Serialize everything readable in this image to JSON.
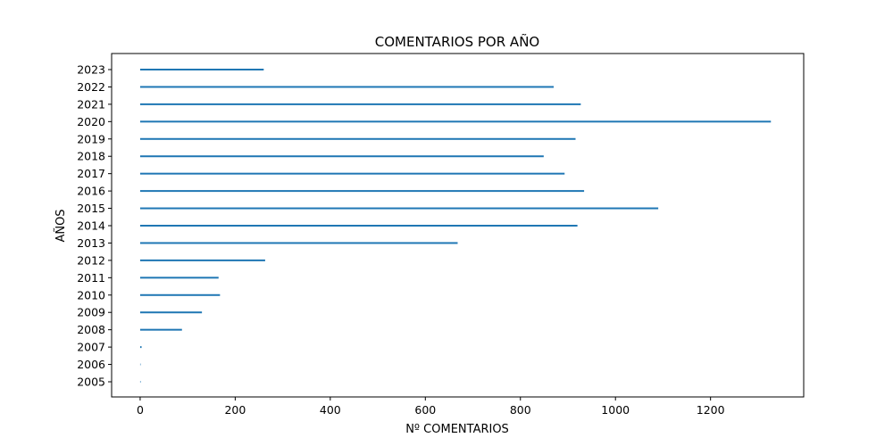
{
  "chart_data": {
    "type": "bar",
    "orientation": "horizontal",
    "title": "COMENTARIOS POR AÑO",
    "xlabel": "Nº COMENTARIOS",
    "ylabel": "AÑOS",
    "categories": [
      "2005",
      "2006",
      "2007",
      "2008",
      "2009",
      "2010",
      "2011",
      "2012",
      "2013",
      "2014",
      "2015",
      "2016",
      "2017",
      "2018",
      "2019",
      "2020",
      "2021",
      "2022",
      "2023"
    ],
    "values": [
      1,
      0,
      3,
      88,
      130,
      168,
      165,
      263,
      668,
      920,
      1090,
      934,
      893,
      849,
      916,
      1327,
      927,
      870,
      260
    ],
    "xlim": [
      -60,
      1396
    ],
    "xticks": [
      "0",
      "200",
      "400",
      "600",
      "800",
      "1000",
      "1200"
    ],
    "grid": false,
    "colors": {
      "bar": "#1f77b4",
      "axes": "#000000",
      "background": "#ffffff"
    }
  }
}
